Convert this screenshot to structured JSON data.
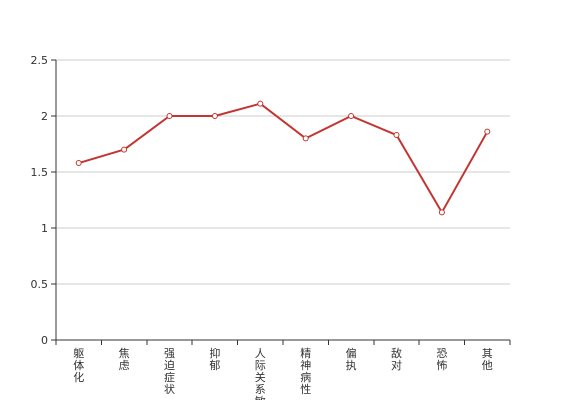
{
  "chart_data": {
    "type": "line",
    "title": "",
    "xlabel": "",
    "ylabel": "",
    "categories": [
      "躯体化",
      "焦虑",
      "强迫症状",
      "抑郁",
      "人际关系敏感",
      "精神病性",
      "偏执",
      "敌对",
      "恐怖",
      "其他"
    ],
    "series": [
      {
        "values": [
          1.58,
          1.7,
          2.0,
          2.0,
          2.11,
          1.8,
          2.0,
          1.83,
          1.14,
          1.86
        ]
      }
    ],
    "ylim": [
      0,
      2.5
    ],
    "yticks": [
      0,
      0.5,
      1,
      1.5,
      2,
      2.5
    ],
    "ytick_labels": [
      "0",
      "0.5",
      "1",
      "1.5",
      "2",
      "2.5"
    ],
    "grid": true,
    "legend": "none",
    "color": "#c23531"
  }
}
